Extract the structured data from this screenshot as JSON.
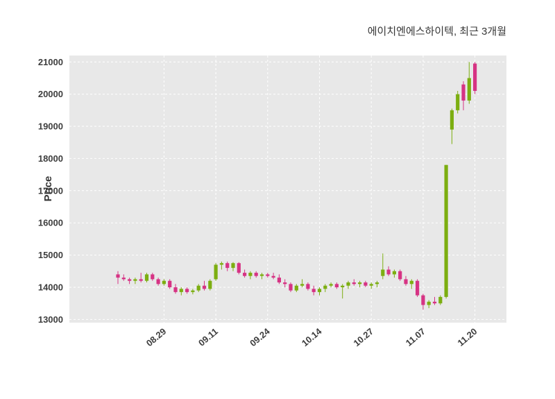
{
  "header": {
    "title": "에이치엔에스하이텍, 최근 3개월"
  },
  "chart_data": {
    "type": "candlestick",
    "title": "에이치엔에스하이텍, 최근 3개월",
    "xlabel": "",
    "ylabel": "Price",
    "ylim": [
      12900,
      21200
    ],
    "y_ticks": [
      13000,
      14000,
      15000,
      16000,
      17000,
      18000,
      19000,
      20000,
      21000
    ],
    "x_tick_labels": [
      "08.29",
      "09.11",
      "09.24",
      "10.14",
      "10.27",
      "11.07",
      "11.20"
    ],
    "x_tick_indices": [
      8,
      17,
      26,
      35,
      44,
      53,
      62
    ],
    "grid": true,
    "plot_background": "#e8e8e8",
    "up_color": "#7cae11",
    "down_color": "#d63384",
    "candles_format": [
      "open",
      "high",
      "low",
      "close"
    ],
    "candles": [
      [
        14400,
        14500,
        14100,
        14300
      ],
      [
        14300,
        14400,
        14200,
        14250
      ],
      [
        14250,
        14300,
        14100,
        14200
      ],
      [
        14200,
        14300,
        14100,
        14250
      ],
      [
        14250,
        14450,
        14150,
        14200
      ],
      [
        14200,
        14450,
        14150,
        14400
      ],
      [
        14400,
        14450,
        14200,
        14250
      ],
      [
        14250,
        14300,
        14050,
        14100
      ],
      [
        14100,
        14250,
        14050,
        14200
      ],
      [
        14200,
        14250,
        13950,
        14000
      ],
      [
        14000,
        14100,
        13800,
        13850
      ],
      [
        13850,
        14000,
        13750,
        13950
      ],
      [
        13950,
        14000,
        13800,
        13850
      ],
      [
        13850,
        13950,
        13780,
        13900
      ],
      [
        13900,
        14100,
        13850,
        14050
      ],
      [
        14050,
        14200,
        13900,
        13950
      ],
      [
        13950,
        14250,
        13900,
        14200
      ],
      [
        14250,
        14750,
        14200,
        14700
      ],
      [
        14700,
        14800,
        14550,
        14750
      ],
      [
        14750,
        14800,
        14500,
        14600
      ],
      [
        14600,
        14780,
        14500,
        14750
      ],
      [
        14750,
        14780,
        14400,
        14450
      ],
      [
        14450,
        14550,
        14300,
        14350
      ],
      [
        14350,
        14500,
        14250,
        14450
      ],
      [
        14450,
        14500,
        14300,
        14350
      ],
      [
        14350,
        14450,
        14250,
        14400
      ],
      [
        14400,
        14450,
        14300,
        14350
      ],
      [
        14350,
        14450,
        14250,
        14300
      ],
      [
        14300,
        14400,
        14100,
        14150
      ],
      [
        14150,
        14250,
        14000,
        14100
      ],
      [
        14100,
        14150,
        13850,
        13900
      ],
      [
        13900,
        14100,
        13850,
        14050
      ],
      [
        14050,
        14250,
        14000,
        14100
      ],
      [
        14100,
        14150,
        13900,
        13950
      ],
      [
        13950,
        14050,
        13750,
        13850
      ],
      [
        13850,
        14000,
        13750,
        13950
      ],
      [
        13950,
        14100,
        13850,
        14050
      ],
      [
        14050,
        14150,
        14000,
        14100
      ],
      [
        14100,
        14150,
        13950,
        14000
      ],
      [
        14000,
        14100,
        13650,
        14050
      ],
      [
        14050,
        14200,
        13950,
        14150
      ],
      [
        14150,
        14250,
        14050,
        14100
      ],
      [
        14100,
        14200,
        14000,
        14150
      ],
      [
        14150,
        14200,
        14000,
        14050
      ],
      [
        14050,
        14150,
        13950,
        14100
      ],
      [
        14100,
        14200,
        14000,
        14150
      ],
      [
        14350,
        15050,
        14250,
        14550
      ],
      [
        14550,
        14650,
        14350,
        14400
      ],
      [
        14400,
        14550,
        14300,
        14500
      ],
      [
        14500,
        14550,
        14200,
        14250
      ],
      [
        14250,
        14350,
        14050,
        14100
      ],
      [
        14100,
        14250,
        13950,
        14200
      ],
      [
        14200,
        14250,
        13700,
        13750
      ],
      [
        13750,
        13800,
        13300,
        13450
      ],
      [
        13450,
        13600,
        13350,
        13550
      ],
      [
        13550,
        13700,
        13450,
        13500
      ],
      [
        13500,
        13750,
        13450,
        13700
      ],
      [
        13700,
        17800,
        13650,
        17800
      ],
      [
        18900,
        19550,
        18450,
        19500
      ],
      [
        19500,
        20100,
        19400,
        20000
      ],
      [
        20300,
        20400,
        19500,
        19800
      ],
      [
        19800,
        21000,
        19700,
        20500
      ],
      [
        20950,
        21000,
        20000,
        20100
      ]
    ]
  }
}
